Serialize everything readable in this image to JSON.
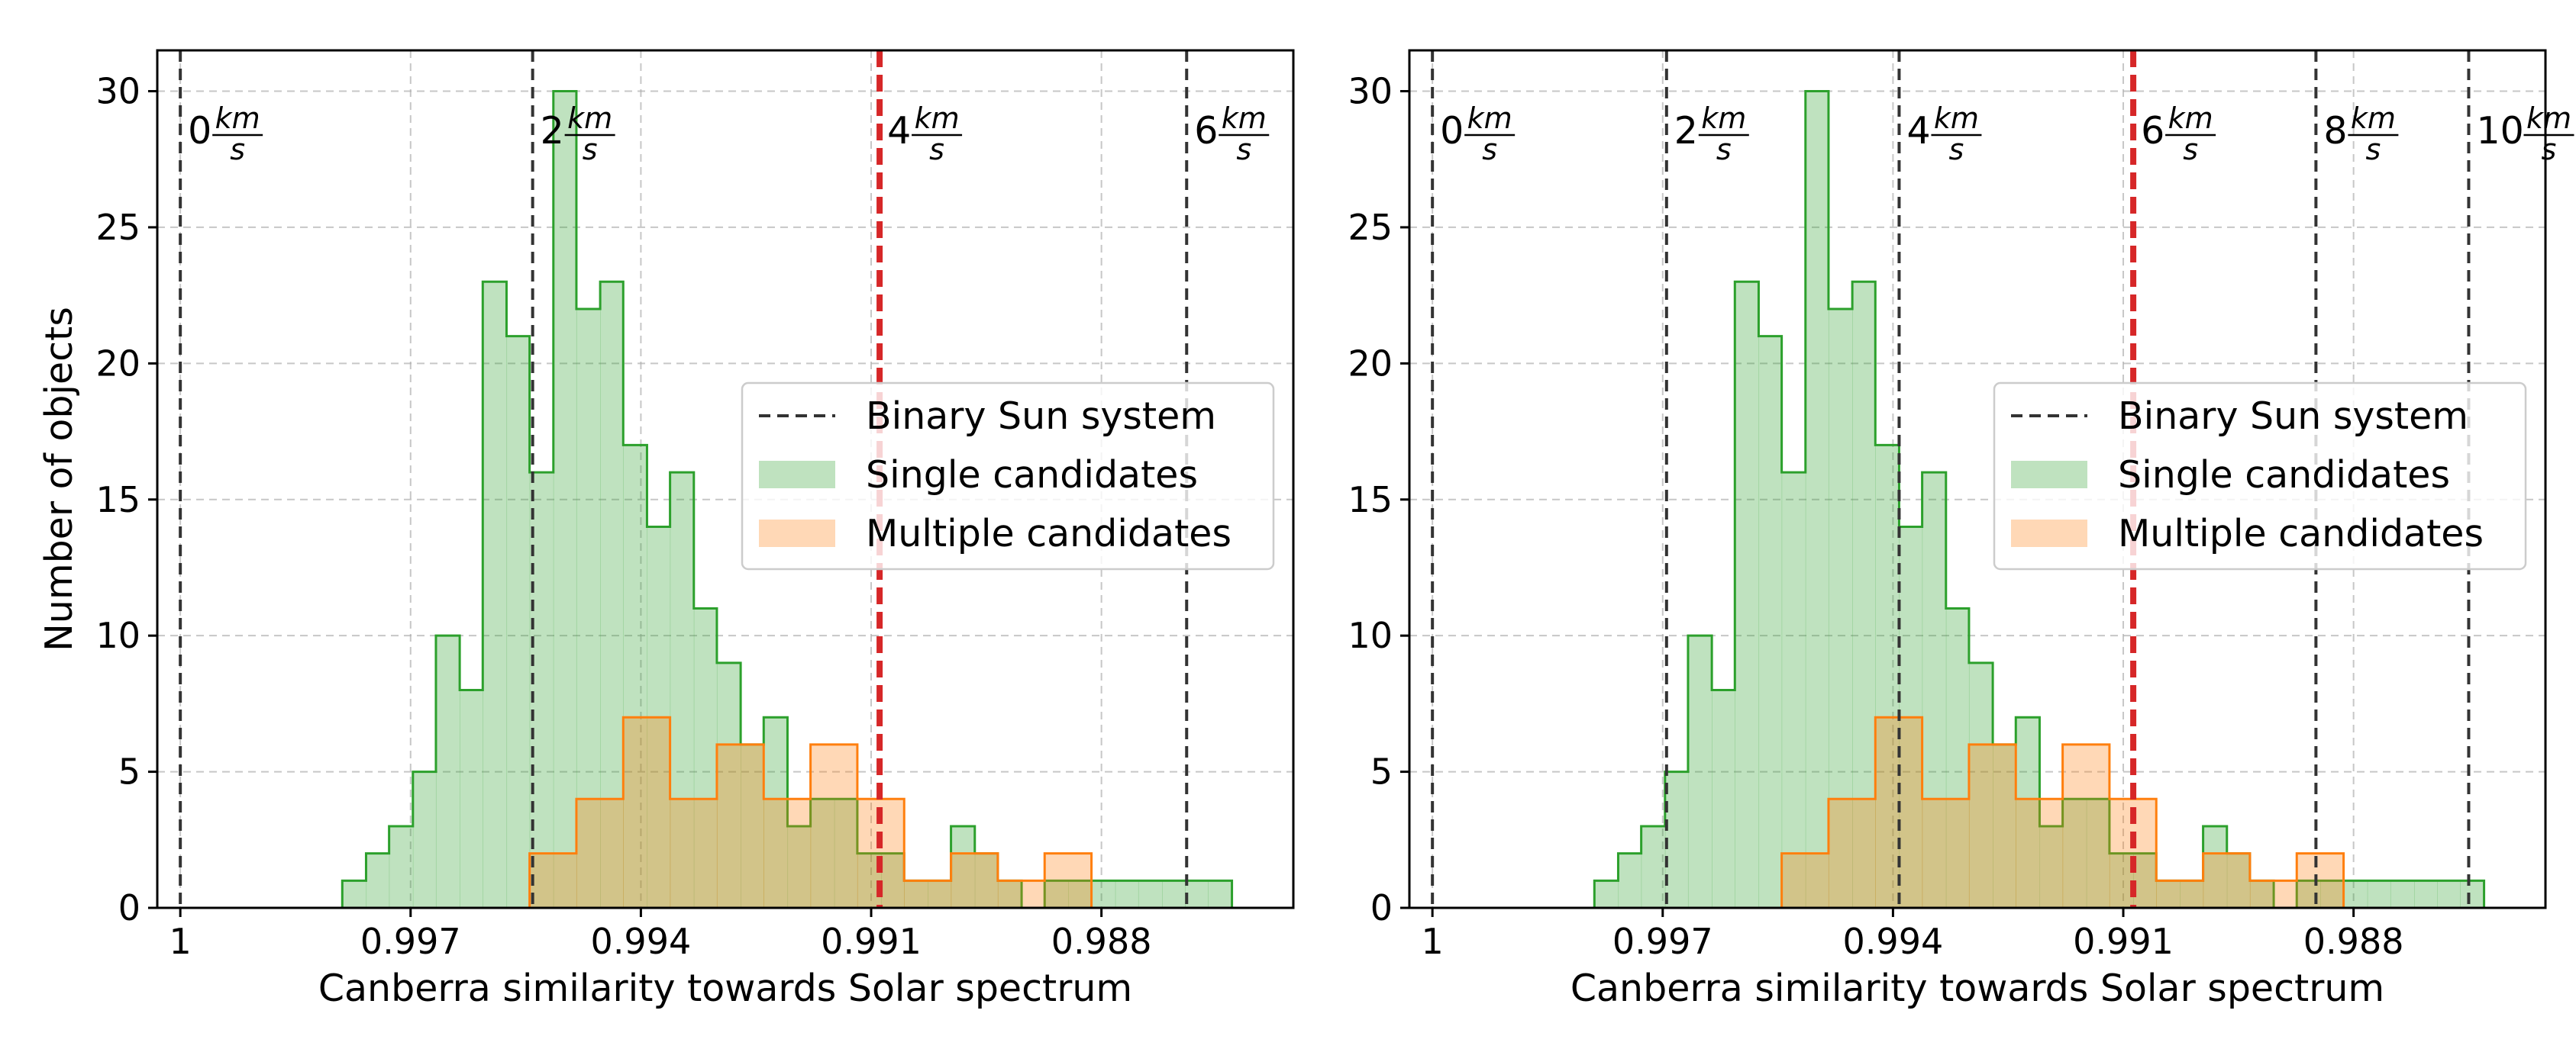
{
  "chart_data": [
    {
      "type": "histogram",
      "xlabel": "Canberra similarity towards Solar spectrum",
      "ylabel": "Number of objects",
      "xlim": [
        1.0003,
        0.9855
      ],
      "ylim": [
        0,
        31.5
      ],
      "x_reversed": true,
      "xticks": [
        1,
        0.997,
        0.994,
        0.991,
        0.988
      ],
      "xtick_labels": [
        "1",
        "0.997",
        "0.994",
        "0.991",
        "0.988"
      ],
      "yticks": [
        0,
        5,
        10,
        15,
        20,
        25,
        30
      ],
      "grid": true,
      "legend": {
        "placement": "center-right",
        "entries": [
          {
            "label": "Binary Sun system",
            "kind": "dashed-line",
            "color": "#333333"
          },
          {
            "label": "Single candidates",
            "kind": "patch",
            "color": "#2ca02c"
          },
          {
            "label": "Multiple candidates",
            "kind": "patch",
            "color": "#ff7f0e"
          }
        ]
      },
      "vlines": [
        {
          "x": 1.0,
          "label": "0",
          "color": "#333333",
          "highlight": false
        },
        {
          "x": 0.99541,
          "label": "2",
          "color": "#333333",
          "highlight": false
        },
        {
          "x": 0.99089,
          "label": "4",
          "color": "#d62728",
          "highlight": true
        },
        {
          "x": 0.98689,
          "label": "6",
          "color": "#333333",
          "highlight": false
        }
      ],
      "vline_unit": {
        "num": "km",
        "den": "s"
      },
      "series": [
        {
          "name": "Single candidates",
          "color": "#2ca02c",
          "edges": [
            0.99789,
            0.99758,
            0.99728,
            0.99697,
            0.99667,
            0.99636,
            0.99606,
            0.99575,
            0.99545,
            0.99514,
            0.99484,
            0.99453,
            0.99423,
            0.99392,
            0.99362,
            0.99331,
            0.99301,
            0.9927,
            0.9924,
            0.99209,
            0.99179,
            0.99148,
            0.99118,
            0.99087,
            0.99057,
            0.99026,
            0.98996,
            0.98965,
            0.98935,
            0.98904,
            0.98874,
            0.98843,
            0.98813,
            0.98782,
            0.98752,
            0.98721,
            0.98691,
            0.98661,
            0.9863
          ],
          "counts": [
            1,
            2,
            3,
            5,
            10,
            8,
            23,
            21,
            16,
            30,
            22,
            23,
            17,
            14,
            16,
            11,
            9,
            6,
            7,
            3,
            4,
            4,
            2,
            2,
            1,
            1,
            3,
            2,
            1,
            0,
            1,
            1,
            1,
            1,
            1,
            1,
            1,
            1
          ]
        },
        {
          "name": "Multiple candidates",
          "color": "#ff7f0e",
          "edges": [
            0.99545,
            0.99484,
            0.99423,
            0.99362,
            0.99301,
            0.9924,
            0.99179,
            0.99118,
            0.99057,
            0.98996,
            0.98935,
            0.98874,
            0.98813,
            0.98752,
            0.98691,
            0.9863
          ],
          "counts": [
            2,
            4,
            7,
            4,
            6,
            4,
            6,
            4,
            1,
            2,
            1,
            2,
            0,
            0,
            0
          ]
        }
      ]
    },
    {
      "type": "histogram",
      "xlabel": "Canberra similarity towards Solar spectrum",
      "ylabel": "",
      "xlim": [
        1.0003,
        0.9855
      ],
      "ylim": [
        0,
        31.5
      ],
      "x_reversed": true,
      "xticks": [
        1,
        0.997,
        0.994,
        0.991,
        0.988
      ],
      "xtick_labels": [
        "1",
        "0.997",
        "0.994",
        "0.991",
        "0.988"
      ],
      "yticks": [
        0,
        5,
        10,
        15,
        20,
        25,
        30
      ],
      "grid": true,
      "legend": {
        "placement": "center-right",
        "entries": [
          {
            "label": "Binary Sun system",
            "kind": "dashed-line",
            "color": "#333333"
          },
          {
            "label": "Single candidates",
            "kind": "patch",
            "color": "#2ca02c"
          },
          {
            "label": "Multiple candidates",
            "kind": "patch",
            "color": "#ff7f0e"
          }
        ]
      },
      "vlines": [
        {
          "x": 1.0,
          "label": "0",
          "color": "#333333",
          "highlight": false
        },
        {
          "x": 0.99695,
          "label": "2",
          "color": "#333333",
          "highlight": false
        },
        {
          "x": 0.99392,
          "label": "4",
          "color": "#333333",
          "highlight": false
        },
        {
          "x": 0.99087,
          "label": "6",
          "color": "#d62728",
          "highlight": true
        },
        {
          "x": 0.98849,
          "label": "8",
          "color": "#333333",
          "highlight": false
        },
        {
          "x": 0.9865,
          "label": "10",
          "color": "#333333",
          "highlight": false
        }
      ],
      "vline_unit": {
        "num": "km",
        "den": "s"
      },
      "series": [
        {
          "name": "Single candidates",
          "color": "#2ca02c",
          "edges": [
            0.99789,
            0.99758,
            0.99728,
            0.99697,
            0.99667,
            0.99636,
            0.99606,
            0.99575,
            0.99545,
            0.99514,
            0.99484,
            0.99453,
            0.99423,
            0.99392,
            0.99362,
            0.99331,
            0.99301,
            0.9927,
            0.9924,
            0.99209,
            0.99179,
            0.99148,
            0.99118,
            0.99087,
            0.99057,
            0.99026,
            0.98996,
            0.98965,
            0.98935,
            0.98904,
            0.98874,
            0.98843,
            0.98813,
            0.98782,
            0.98752,
            0.98721,
            0.98691,
            0.98661,
            0.9863
          ],
          "counts": [
            1,
            2,
            3,
            5,
            10,
            8,
            23,
            21,
            16,
            30,
            22,
            23,
            17,
            14,
            16,
            11,
            9,
            6,
            7,
            3,
            4,
            4,
            2,
            2,
            1,
            1,
            3,
            2,
            1,
            0,
            1,
            1,
            1,
            1,
            1,
            1,
            1,
            1
          ]
        },
        {
          "name": "Multiple candidates",
          "color": "#ff7f0e",
          "edges": [
            0.99545,
            0.99484,
            0.99423,
            0.99362,
            0.99301,
            0.9924,
            0.99179,
            0.99118,
            0.99057,
            0.98996,
            0.98935,
            0.98874,
            0.98813,
            0.98752,
            0.98691,
            0.9863
          ],
          "counts": [
            2,
            4,
            7,
            4,
            6,
            4,
            6,
            4,
            1,
            2,
            1,
            2,
            0,
            0,
            0
          ]
        }
      ]
    }
  ]
}
